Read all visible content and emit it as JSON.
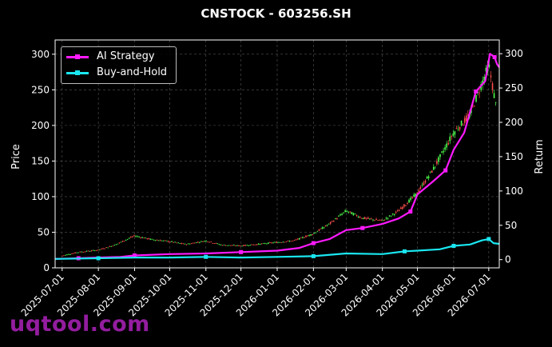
{
  "title": "CNSTOCK - 603256.SH",
  "watermark": "uqtool.com",
  "colors": {
    "background": "#000000",
    "ai_strategy": "#ff1aff",
    "buy_and_hold": "#1ae6f0",
    "candle_up": "#ff4d4d",
    "candle_down": "#4dff4d",
    "watermark": "#9b1fa8"
  },
  "chart_data": {
    "type": "line",
    "title": "CNSTOCK - 603256.SH",
    "xlabel": "",
    "ylabel": "Price",
    "ylabel_right": "Return",
    "xlim": [
      "2025-06-25",
      "2026-07-10"
    ],
    "ylim": [
      0,
      320
    ],
    "ylim_right": [
      -12,
      320
    ],
    "grid": true,
    "legend_position": "top-left",
    "x_ticks": [
      "2025-07-01",
      "2025-08-01",
      "2025-09-01",
      "2025-10-01",
      "2025-11-01",
      "2025-12-01",
      "2026-01-01",
      "2026-02-01",
      "2026-03-01",
      "2026-04-01",
      "2026-05-01",
      "2026-06-01",
      "2026-07-01"
    ],
    "y_ticks": [
      0,
      50,
      100,
      150,
      200,
      250,
      300
    ],
    "y_ticks_right": [
      0,
      50,
      100,
      150,
      200,
      250,
      300
    ],
    "series": [
      {
        "name": "AI Strategy",
        "axis": "right",
        "x": [
          "2025-06-25",
          "2025-07-15",
          "2025-08-01",
          "2025-08-20",
          "2025-09-01",
          "2025-10-01",
          "2025-11-01",
          "2025-12-01",
          "2026-01-01",
          "2026-01-20",
          "2026-02-01",
          "2026-02-15",
          "2026-03-01",
          "2026-03-15",
          "2026-04-01",
          "2026-04-15",
          "2026-04-25",
          "2026-05-01",
          "2026-05-15",
          "2026-05-25",
          "2026-06-01",
          "2026-06-10",
          "2026-06-20",
          "2026-06-28",
          "2026-07-02",
          "2026-07-06",
          "2026-07-08",
          "2026-07-10"
        ],
        "values": [
          1,
          2,
          3,
          4,
          6,
          8,
          9,
          11,
          13,
          17,
          24,
          30,
          43,
          46,
          52,
          60,
          70,
          95,
          115,
          130,
          160,
          185,
          245,
          260,
          300,
          295,
          285,
          280
        ]
      },
      {
        "name": "Buy-and-Hold",
        "axis": "right",
        "x": [
          "2025-06-25",
          "2025-08-01",
          "2025-09-01",
          "2025-10-01",
          "2025-11-01",
          "2025-12-01",
          "2026-01-01",
          "2026-02-01",
          "2026-03-01",
          "2026-04-01",
          "2026-04-20",
          "2026-05-01",
          "2026-05-20",
          "2026-06-01",
          "2026-06-15",
          "2026-06-25",
          "2026-07-01",
          "2026-07-05",
          "2026-07-10"
        ],
        "values": [
          1,
          2,
          3,
          3,
          4,
          3,
          4,
          5,
          9,
          8,
          12,
          13,
          15,
          20,
          22,
          28,
          30,
          24,
          23
        ]
      },
      {
        "name": "Price candles",
        "axis": "left",
        "x": [
          "2025-07-01",
          "2025-07-15",
          "2025-08-01",
          "2025-08-15",
          "2025-09-01",
          "2025-09-15",
          "2025-10-01",
          "2025-10-15",
          "2025-11-01",
          "2025-11-15",
          "2025-12-01",
          "2025-12-15",
          "2026-01-01",
          "2026-01-15",
          "2026-02-01",
          "2026-02-15",
          "2026-03-01",
          "2026-03-15",
          "2026-04-01",
          "2026-04-15",
          "2026-05-01",
          "2026-05-15",
          "2026-06-01",
          "2026-06-15",
          "2026-07-01",
          "2026-07-08"
        ],
        "values": [
          17,
          22,
          25,
          32,
          45,
          40,
          37,
          33,
          38,
          32,
          31,
          33,
          36,
          38,
          48,
          62,
          80,
          70,
          66,
          80,
          105,
          140,
          190,
          215,
          285,
          220
        ]
      }
    ]
  }
}
